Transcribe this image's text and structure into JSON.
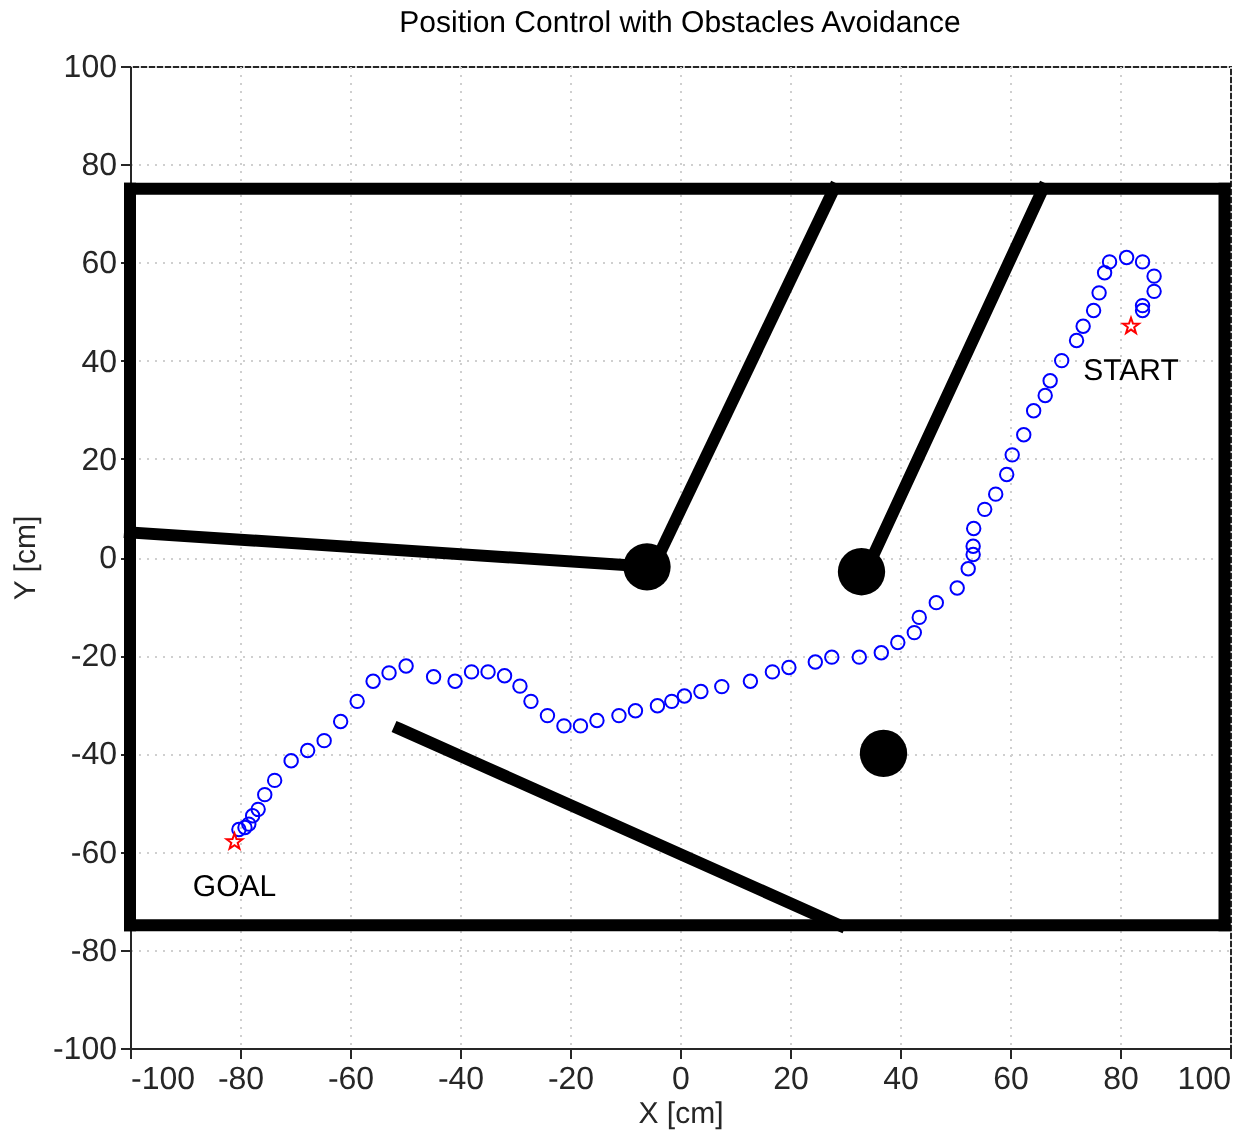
{
  "chart_data": {
    "type": "scatter",
    "title": "Position Control with Obstacles Avoidance",
    "xlabel": "X [cm]",
    "ylabel": "Y [cm]",
    "xlim": [
      -100,
      100
    ],
    "ylim": [
      -100,
      100
    ],
    "xticks": [
      -100,
      -80,
      -60,
      -40,
      -20,
      0,
      20,
      40,
      60,
      80,
      100
    ],
    "yticks": [
      -100,
      -80,
      -60,
      -40,
      -20,
      0,
      20,
      40,
      60,
      80,
      100
    ],
    "grid": true,
    "series": [
      {
        "type": "line",
        "color": "#000000",
        "x": [
          -100,
          99
        ],
        "values": [
          75,
          75
        ]
      },
      {
        "type": "line",
        "color": "#000000",
        "x": [
          99,
          99
        ],
        "values": [
          75,
          -75
        ]
      },
      {
        "type": "line",
        "color": "#000000",
        "x": [
          -100,
          99
        ],
        "values": [
          -75,
          -75
        ]
      },
      {
        "type": "line",
        "color": "#000000",
        "x": [
          -100,
          -100
        ],
        "values": [
          75,
          -75
        ]
      },
      {
        "type": "line",
        "color": "#000000",
        "x": [
          -100,
          -5
        ],
        "values": [
          5,
          -2
        ]
      },
      {
        "type": "line",
        "color": "#000000",
        "x": [
          -4,
          28
        ],
        "values": [
          0,
          75
        ]
      },
      {
        "type": "line",
        "color": "#000000",
        "x": [
          35,
          66
        ],
        "values": [
          0,
          75
        ]
      },
      {
        "type": "line",
        "color": "#000000",
        "x": [
          -51,
          29
        ],
        "values": [
          -35,
          -75
        ]
      },
      {
        "type": "bubble",
        "color": "#000000",
        "x": [
          -6,
          33,
          37
        ],
        "values": [
          -2,
          -3,
          -40
        ],
        "sizes": [
          1,
          1,
          1
        ]
      },
      {
        "marker": "circle",
        "color": "#0000ff",
        "x": [
          -80.2,
          -79.1,
          -78.4,
          -77.7,
          -76.7,
          -75.5,
          -73.7,
          -70.7,
          -67.7,
          -64.7,
          -61.7,
          -58.7,
          -55.8,
          -52.9,
          -49.8,
          -44.8,
          -40.9,
          -37.9,
          -34.9,
          -31.9,
          -29.1,
          -27.1,
          -24.1,
          -21.1,
          -18.1,
          -15.1,
          -11.1,
          -8.1,
          -4.1,
          -1.5,
          0.8,
          3.8,
          7.6,
          12.8,
          16.8,
          19.8,
          24.6,
          27.6,
          32.6,
          36.6,
          39.6,
          42.6,
          43.5,
          46.6,
          50.4,
          52.4,
          53.3,
          53.3,
          53.4,
          55.4,
          57.4,
          59.4,
          60.4,
          62.5,
          64.3,
          66.4,
          67.3,
          69.4,
          72.1,
          73.3,
          75.2,
          76.2,
          77.2,
          78.1,
          81.2,
          84.1,
          86.2,
          86.2,
          84.1,
          84.1
        ],
        "values": [
          -55.5,
          -55.1,
          -54.4,
          -52.7,
          -51.4,
          -48.4,
          -45.5,
          -41.5,
          -39.4,
          -37.4,
          -33.5,
          -29.4,
          -25.3,
          -23.6,
          -22.2,
          -24.4,
          -25.3,
          -23.4,
          -23.4,
          -24.2,
          -26.3,
          -29.4,
          -32.3,
          -34.4,
          -34.4,
          -33.3,
          -32.3,
          -31.3,
          -30.3,
          -29.4,
          -28.3,
          -27.4,
          -26.4,
          -25.3,
          -23.4,
          -22.5,
          -21.4,
          -20.4,
          -20.4,
          -19.5,
          -17.4,
          -15.4,
          -12.3,
          -9.3,
          -6.3,
          -2.4,
          0.5,
          2.2,
          5.8,
          9.7,
          12.8,
          16.8,
          20.8,
          24.9,
          29.8,
          32.9,
          35.9,
          40.0,
          44.1,
          47.0,
          50.2,
          53.8,
          57.9,
          60.1,
          61.0,
          60.1,
          57.2,
          54.1,
          51.2,
          50.2
        ]
      },
      {
        "marker": "star",
        "color": "#ff0000",
        "x": [
          82,
          -81
        ],
        "values": [
          47,
          -58
        ]
      }
    ],
    "annotations": [
      "START",
      "GOAL"
    ]
  }
}
